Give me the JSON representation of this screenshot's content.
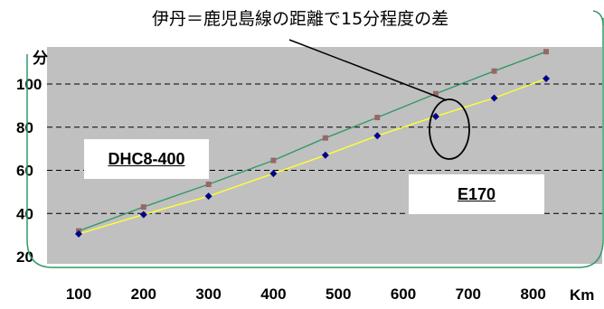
{
  "chart_data": {
    "type": "line",
    "title": "",
    "annotation": "伊丹＝鹿児島線の距離で15分程度の差",
    "ylabel": "分",
    "xlabel": "Km",
    "ylim": [
      20,
      115
    ],
    "xlim": [
      60,
      830
    ],
    "yticks": [
      20,
      40,
      60,
      80,
      100
    ],
    "xticks": [
      100,
      200,
      300,
      400,
      500,
      600,
      700,
      800
    ],
    "grid": "horizontal dashed",
    "series": [
      {
        "name": "DHC8-400",
        "color": "#339966",
        "marker_color": "#996666",
        "points": [
          [
            100,
            31.9
          ],
          [
            200,
            43.0
          ],
          [
            300,
            53.5
          ],
          [
            400,
            64.6
          ],
          [
            480,
            75.0
          ],
          [
            560,
            84.5
          ],
          [
            650,
            95.5
          ],
          [
            740,
            106.0
          ],
          [
            820,
            115.0
          ]
        ]
      },
      {
        "name": "E170",
        "color": "#ffff33",
        "marker_color": "#00008b",
        "points": [
          [
            100,
            30.5
          ],
          [
            200,
            39.5
          ],
          [
            300,
            48.0
          ],
          [
            400,
            58.5
          ],
          [
            480,
            67.0
          ],
          [
            560,
            76.0
          ],
          [
            650,
            85.0
          ],
          [
            740,
            93.5
          ],
          [
            820,
            102.5
          ]
        ]
      }
    ]
  }
}
